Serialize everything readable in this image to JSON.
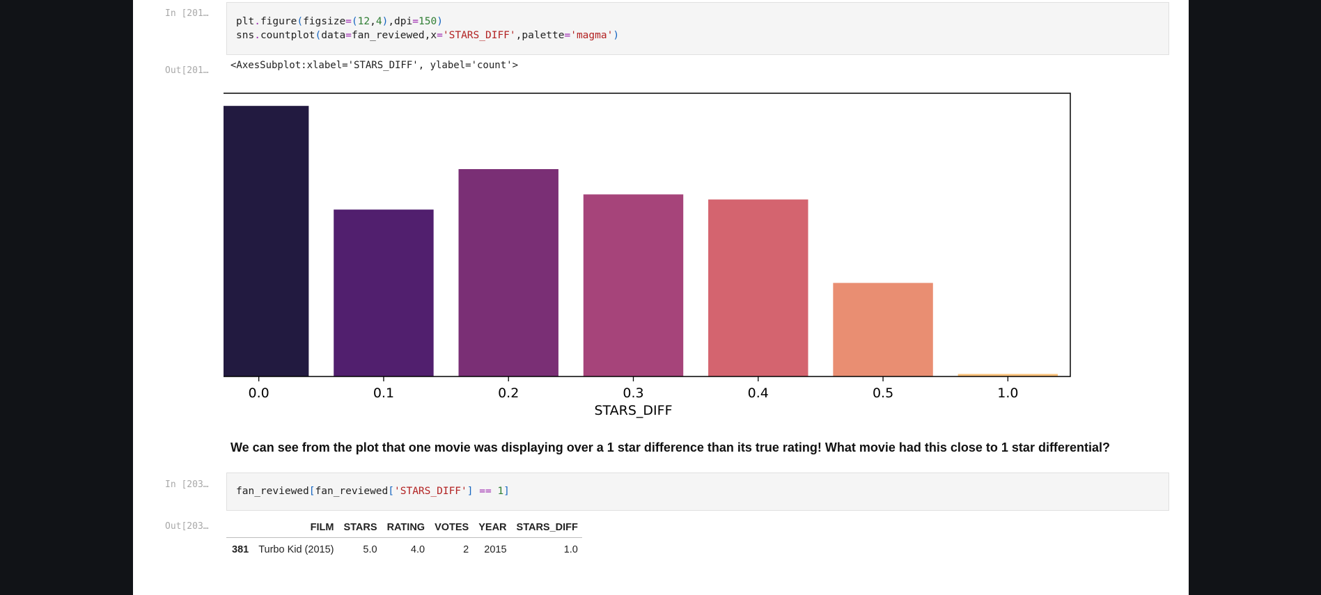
{
  "cells": [
    {
      "in_prompt": "In [201…",
      "code_lines": [
        [
          [
            "plt",
            "k-var"
          ],
          [
            ".",
            "k-op"
          ],
          [
            "figure",
            "k-var"
          ],
          [
            "(",
            "k-br"
          ],
          [
            "figsize",
            "k-var"
          ],
          [
            "=",
            "k-op"
          ],
          [
            "(",
            "k-br"
          ],
          [
            "12",
            "k-num"
          ],
          [
            ",",
            "k-var"
          ],
          [
            "4",
            "k-num"
          ],
          [
            ")",
            "k-br"
          ],
          [
            ",",
            "k-var"
          ],
          [
            "dpi",
            "k-var"
          ],
          [
            "=",
            "k-op"
          ],
          [
            "150",
            "k-num"
          ],
          [
            ")",
            "k-br"
          ]
        ],
        [
          [
            "sns",
            "k-var"
          ],
          [
            ".",
            "k-op"
          ],
          [
            "countplot",
            "k-var"
          ],
          [
            "(",
            "k-br"
          ],
          [
            "data",
            "k-var"
          ],
          [
            "=",
            "k-op"
          ],
          [
            "fan_reviewed",
            "k-var"
          ],
          [
            ",",
            "k-var"
          ],
          [
            "x",
            "k-var"
          ],
          [
            "=",
            "k-op"
          ],
          [
            "'STARS_DIFF'",
            "k-str"
          ],
          [
            ",",
            "k-var"
          ],
          [
            "palette",
            "k-var"
          ],
          [
            "=",
            "k-op"
          ],
          [
            "'magma'",
            "k-str"
          ],
          [
            ")",
            "k-br"
          ]
        ]
      ],
      "out_prompt": "Out[201…",
      "out_repr": "<AxesSubplot:xlabel='STARS_DIFF', ylabel='count'>"
    },
    {
      "in_prompt": "In [203…",
      "code_lines": [
        [
          [
            "fan_reviewed",
            "k-var"
          ],
          [
            "[",
            "k-br"
          ],
          [
            "fan_reviewed",
            "k-var"
          ],
          [
            "[",
            "k-br"
          ],
          [
            "'STARS_DIFF'",
            "k-str"
          ],
          [
            "]",
            "k-br"
          ],
          [
            " ",
            "k-var"
          ],
          [
            "==",
            "k-op"
          ],
          [
            " ",
            "k-var"
          ],
          [
            "1",
            "k-num"
          ],
          [
            "]",
            "k-br"
          ]
        ]
      ],
      "out_prompt": "Out[203…"
    }
  ],
  "markdown_text": "We can see from the plot that one movie was displaying over a 1 star difference than its true rating! What movie had this close to 1 star differential?",
  "chart_data": {
    "type": "bar",
    "categories": [
      "0.0",
      "0.1",
      "0.2",
      "0.3",
      "0.4",
      "0.5",
      "1.0"
    ],
    "values": [
      107,
      66,
      82,
      72,
      70,
      37,
      1
    ],
    "colors": [
      "#221a40",
      "#511f6e",
      "#7a2f75",
      "#a6447a",
      "#d4646f",
      "#e98e72",
      "#fbc17a"
    ],
    "xlabel": "STARS_DIFF",
    "ylabel": "count",
    "ylim": [
      0,
      112
    ],
    "yticks": [
      "0",
      "20",
      "40",
      "60",
      "80",
      "100"
    ],
    "ytick_values": [
      0,
      20,
      40,
      60,
      80,
      100
    ],
    "grid": false
  },
  "table": {
    "columns": [
      "FILM",
      "STARS",
      "RATING",
      "VOTES",
      "YEAR",
      "STARS_DIFF"
    ],
    "rows": [
      {
        "index": "381",
        "cells": [
          "Turbo Kid (2015)",
          "5.0",
          "4.0",
          "2",
          "2015",
          "1.0"
        ]
      }
    ]
  }
}
